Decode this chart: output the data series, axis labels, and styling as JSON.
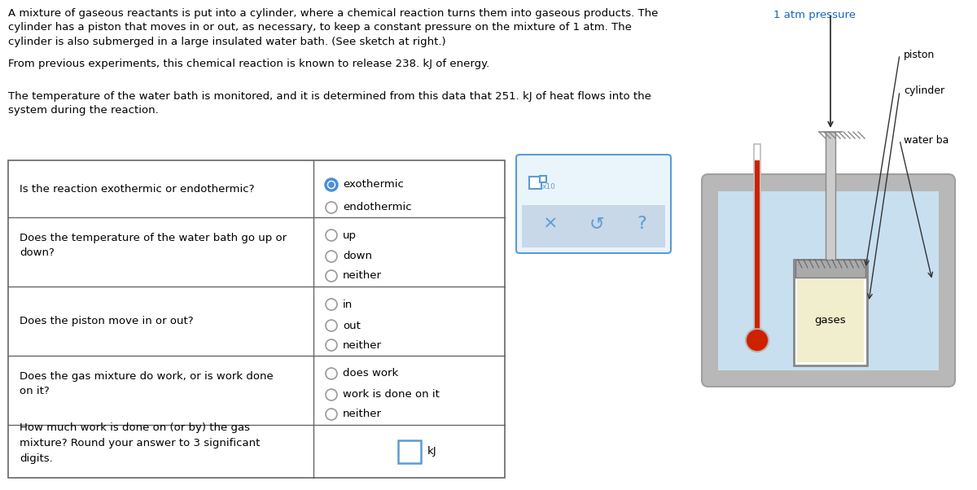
{
  "title_text": "A mixture of gaseous reactants is put into a cylinder, where a chemical reaction turns them into gaseous products. The\ncylinder has a piston that moves in or out, as necessary, to keep a constant pressure on the mixture of 1 atm. The\ncylinder is also submerged in a large insulated water bath. (See sketch at right.)",
  "para1": "From previous experiments, this chemical reaction is known to release 238. kJ of energy.",
  "para2": "The temperature of the water bath is monitored, and it is determined from this data that 251. kJ of heat flows into the\nsystem during the reaction.",
  "q1_text": "Is the reaction exothermic or endothermic?",
  "q1_options": [
    "exothermic",
    "endothermic"
  ],
  "q2_text": "Does the temperature of the water bath go up or\ndown?",
  "q2_options": [
    "up",
    "down",
    "neither"
  ],
  "q3_text": "Does the piston move in or out?",
  "q3_options": [
    "in",
    "out",
    "neither"
  ],
  "q4_text": "Does the gas mixture do work, or is work done\non it?",
  "q4_options": [
    "does work",
    "work is done on it",
    "neither"
  ],
  "q5_text": "How much work is done on (or by) the gas\nmixture? Round your answer to 3 significant\ndigits.",
  "q5_unit": "kJ",
  "bg_color": "#ffffff",
  "table_border_color": "#666666",
  "radio_color_sel": "#4a90d9",
  "radio_color_unsel": "#999999",
  "text_color": "#000000",
  "diagram_label_color": "#1565c0",
  "diagram_bath_outer": "#b0b0b0",
  "diagram_bath_fill": "#b0b0b0",
  "diagram_water_color": "#c8dff0",
  "diagram_gas_color": "#f0eecc",
  "diagram_therm_color": "#cc2200",
  "panel_border": "#5b9bd5",
  "panel_bg": "#eaf4fb",
  "panel_strip_bg": "#c8d8e8",
  "panel_btn_color": "#5b9bd5"
}
